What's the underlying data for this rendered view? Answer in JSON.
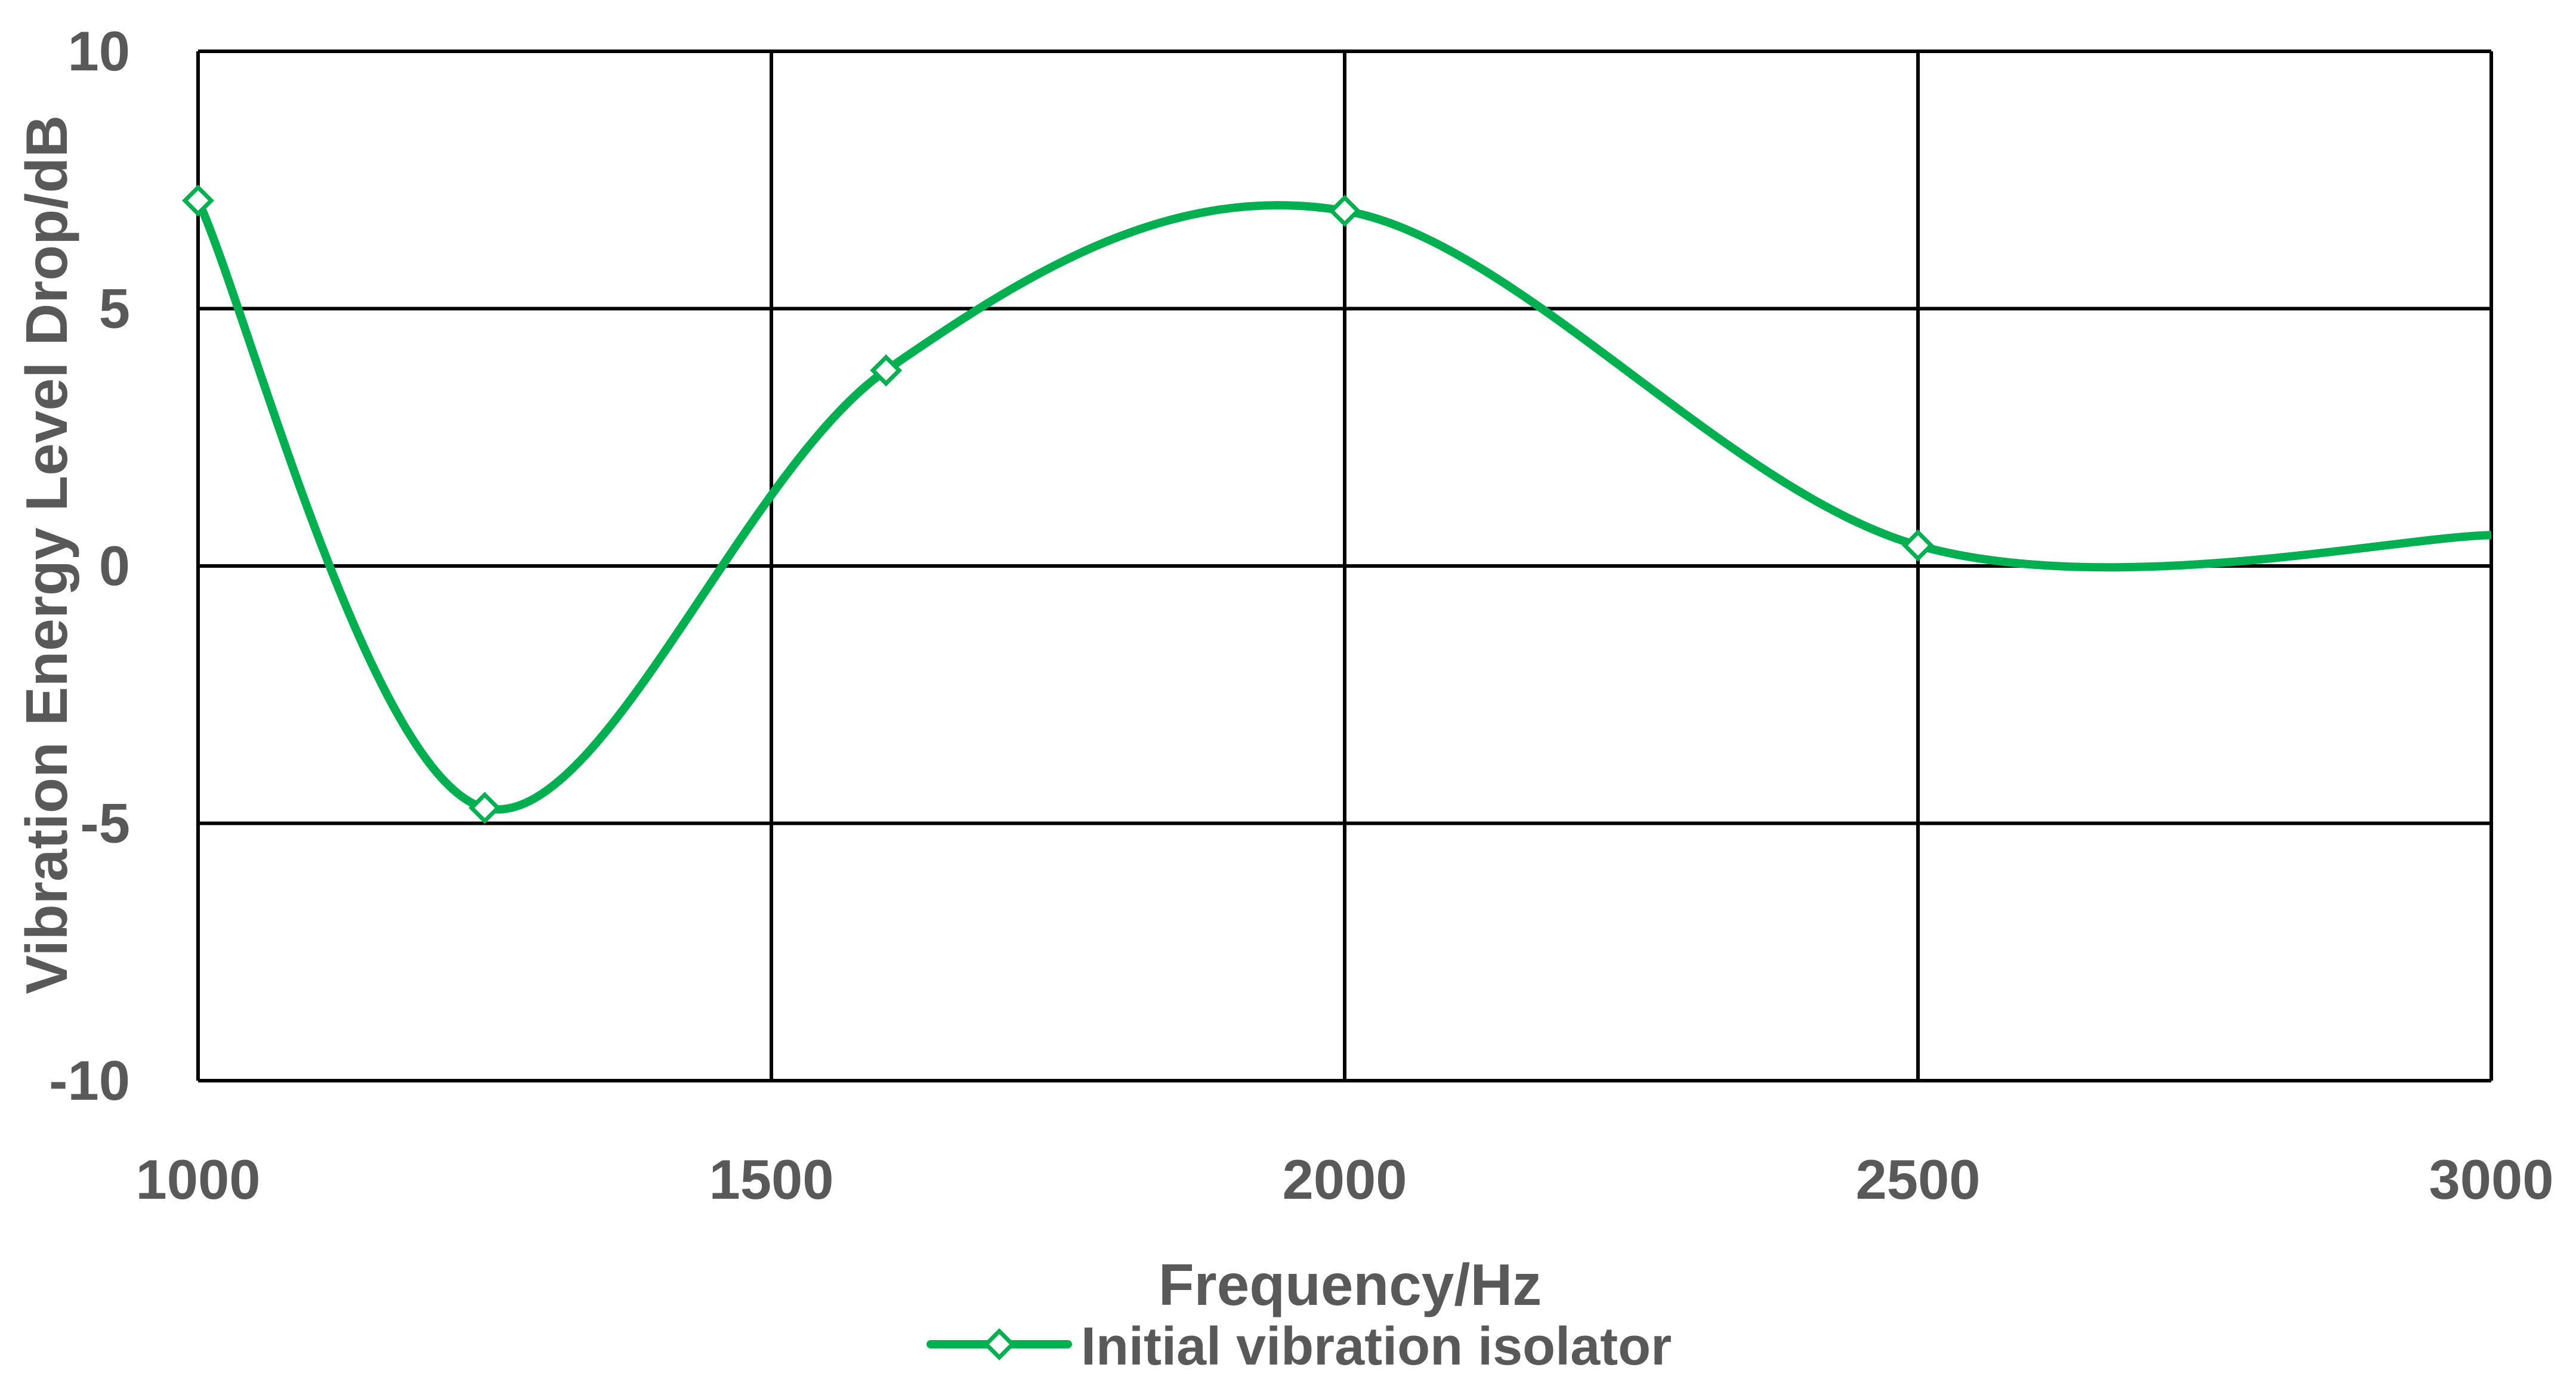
{
  "chart_data": {
    "type": "line",
    "title": "",
    "xlabel": "Frequency/Hz",
    "ylabel": "Vibration Energy Level Drop/dB",
    "xlim": [
      1000,
      3000
    ],
    "ylim": [
      -10,
      10
    ],
    "x_ticks": [
      "1000",
      "1500",
      "2000",
      "2500",
      "3000"
    ],
    "y_ticks": [
      "10",
      "5",
      "0",
      "-5",
      "-10"
    ],
    "grid": true,
    "legend_position": "bottom",
    "series": [
      {
        "name": "Initial vibration isolator",
        "color": "#00B050",
        "marker": "diamond-open",
        "smooth": true,
        "points": [
          {
            "x": 1000,
            "y": 7.1
          },
          {
            "x": 1250,
            "y": -4.7
          },
          {
            "x": 1600,
            "y": 3.8
          },
          {
            "x": 2000,
            "y": 6.9
          },
          {
            "x": 2500,
            "y": 0.4
          },
          {
            "x": 3000,
            "y": 0.6
          }
        ],
        "visible_markers": [
          0,
          1,
          2,
          3,
          4
        ]
      }
    ]
  }
}
